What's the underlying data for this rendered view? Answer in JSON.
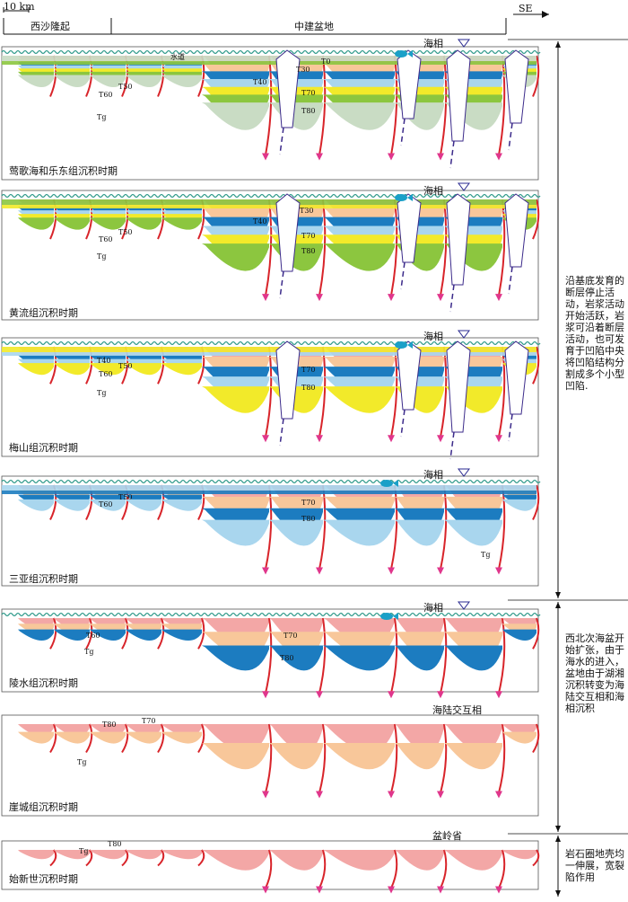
{
  "header": {
    "scale_label": "10 km",
    "direction": "SE",
    "uplift": "西沙隆起",
    "basin": "中建盆地"
  },
  "panels": [
    {
      "id": "p1",
      "caption": "莺歌海和乐东组沉积时期",
      "env": "海相",
      "side_labels": {
        "waterway": "水道"
      },
      "horizons": [
        "T0",
        "T30",
        "T40",
        "T50",
        "T60",
        "T70",
        "T80",
        "Tg"
      ]
    },
    {
      "id": "p2",
      "caption": "黄流组沉积时期",
      "env": "海相",
      "horizons": [
        "T30",
        "T40",
        "T50",
        "T60",
        "T70",
        "T80",
        "Tg"
      ]
    },
    {
      "id": "p3",
      "caption": "梅山组沉积时期",
      "env": "海相",
      "horizons": [
        "T40",
        "T50",
        "T60",
        "T70",
        "T80",
        "Tg"
      ]
    },
    {
      "id": "p4",
      "caption": "三亚组沉积时期",
      "env": "海相",
      "horizons": [
        "T50",
        "T60",
        "T70",
        "T80",
        "Tg"
      ]
    },
    {
      "id": "p5",
      "caption": "陵水组沉积时期",
      "env": "海相",
      "horizons": [
        "T60",
        "T70",
        "T80",
        "Tg"
      ]
    },
    {
      "id": "p6",
      "caption": "崖城组沉积时期",
      "env": "海陆交互相",
      "horizons": [
        "T70",
        "T80",
        "Tg"
      ]
    },
    {
      "id": "p7",
      "caption": "始新世沉积时期",
      "env": "盆岭省",
      "horizons": [
        "T80",
        "Tg"
      ]
    }
  ],
  "notes": {
    "n1": "沿基底发育的断层停止活动，岩浆活动开始活跃，岩浆可沿着断层活动，也可发育于凹陷中央将凹陷结构分割成多个小型凹陷.",
    "n2": "西北次海盆开始扩张，由于海水的进入，盆地由于湖湘沉积转变为海陆交互相和海相沉积",
    "n3": "岩石圈地壳均一伸展，宽裂陷作用"
  },
  "colors": {
    "sea": "#2f9a8a",
    "fault": "#d8242a",
    "magma": "#3b2a8a",
    "t0": "#c9dcc4",
    "t30": "#8cc63f",
    "t40": "#f2ea2a",
    "t50": "#a9d6ee",
    "t60": "#1c7cc0",
    "t70": "#f8c79a",
    "t80": "#f3a7a6",
    "tg": "#ffffff"
  }
}
